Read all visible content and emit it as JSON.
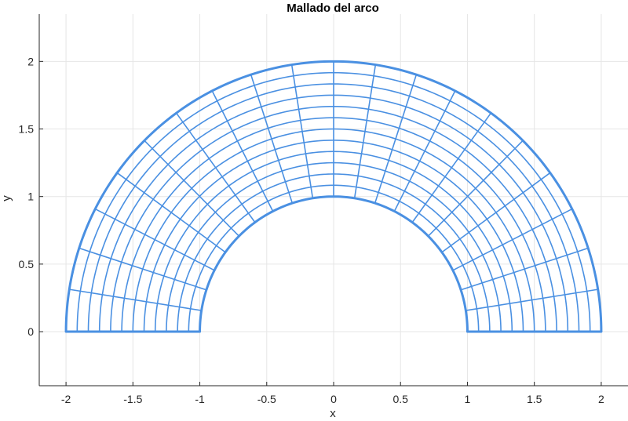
{
  "chart_data": {
    "type": "line",
    "title": "Mallado del arco",
    "xlabel": "x",
    "ylabel": "y",
    "xlim": [
      -2.2,
      2.2
    ],
    "ylim": [
      -0.4,
      2.35
    ],
    "xticks": [
      -2,
      -1.5,
      -1,
      -0.5,
      0,
      0.5,
      1,
      1.5,
      2
    ],
    "xtick_labels": [
      "-2",
      "-1.5",
      "-1",
      "-0.5",
      "0",
      "0.5",
      "1",
      "1.5",
      "2"
    ],
    "yticks": [
      0,
      0.5,
      1,
      1.5,
      2
    ],
    "ytick_labels": [
      "0",
      "0.5",
      "1",
      "1.5",
      "2"
    ],
    "grid": true,
    "mesh": {
      "inner_radius": 1,
      "outer_radius": 2,
      "angle_start_deg": 0,
      "angle_end_deg": 180,
      "radial_divisions": 12,
      "angular_divisions": 20
    },
    "colors": {
      "mesh": "#4a90e2",
      "grid": "#e6e6e6",
      "axis": "#262626"
    }
  }
}
